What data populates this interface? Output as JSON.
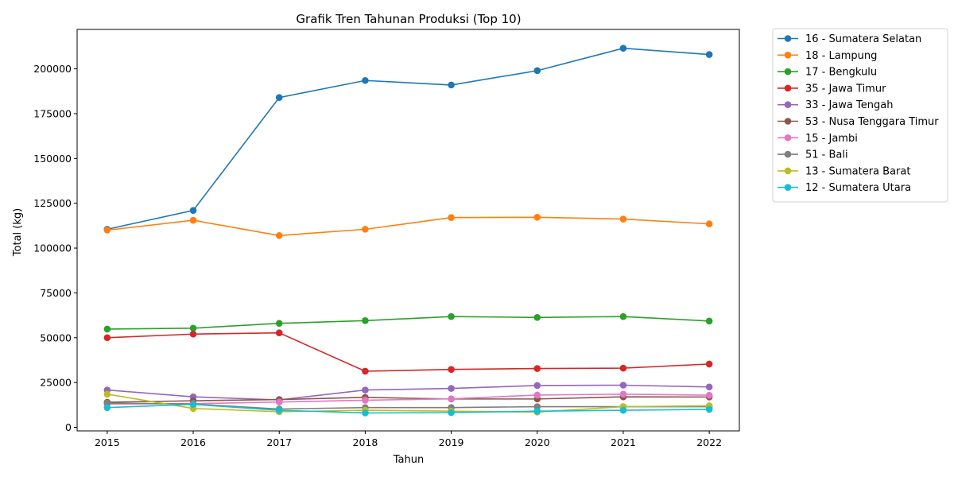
{
  "chart_data": {
    "type": "line",
    "title": "Grafik Tren Tahunan Produksi (Top 10)",
    "xlabel": "Tahun",
    "ylabel": "Total (kg)",
    "x": [
      2015,
      2016,
      2017,
      2018,
      2019,
      2020,
      2021,
      2022
    ],
    "x_tick_labels": [
      "2015",
      "2016",
      "2017",
      "2018",
      "2019",
      "2020",
      "2021",
      "2022"
    ],
    "y_ticks": [
      0,
      25000,
      50000,
      75000,
      100000,
      125000,
      150000,
      175000,
      200000
    ],
    "y_tick_labels": [
      "0",
      "25000",
      "50000",
      "75000",
      "100000",
      "125000",
      "150000",
      "175000",
      "200000"
    ],
    "ylim": [
      -2000,
      222000
    ],
    "xlim": [
      2014.65,
      2022.35
    ],
    "grid": false,
    "legend_position": "outside-right",
    "series": [
      {
        "name": "16 - Sumatera Selatan",
        "color": "#1f77b4",
        "values": [
          110500,
          121000,
          184000,
          193500,
          191000,
          199000,
          211500,
          208000
        ]
      },
      {
        "name": "18 - Lampung",
        "color": "#ff7f0e",
        "values": [
          110000,
          115500,
          107000,
          110500,
          117000,
          117200,
          116200,
          113500
        ]
      },
      {
        "name": "17 - Bengkulu",
        "color": "#2ca02c",
        "values": [
          54800,
          55300,
          58000,
          59500,
          61800,
          61300,
          61800,
          59300
        ]
      },
      {
        "name": "35 - Jawa Timur",
        "color": "#d62728",
        "values": [
          50000,
          52000,
          52700,
          31300,
          32300,
          32800,
          33000,
          35300
        ]
      },
      {
        "name": "33 - Jawa Tengah",
        "color": "#9467bd",
        "values": [
          20800,
          17000,
          15300,
          20800,
          21700,
          23300,
          23500,
          22500
        ]
      },
      {
        "name": "53 - Nusa Tenggara Timur",
        "color": "#8c564b",
        "values": [
          14000,
          14800,
          15500,
          16700,
          15800,
          15800,
          17000,
          16900
        ]
      },
      {
        "name": "15 - Jambi",
        "color": "#e377c2",
        "values": [
          13000,
          13200,
          14100,
          15100,
          15900,
          18000,
          18500,
          17900
        ]
      },
      {
        "name": "51 - Bali",
        "color": "#7f7f7f",
        "values": [
          13500,
          13000,
          10200,
          11000,
          11000,
          11500,
          11500,
          11500
        ]
      },
      {
        "name": "13 - Sumatera Barat",
        "color": "#bcbd22",
        "values": [
          18500,
          10500,
          8700,
          9500,
          9000,
          8500,
          11500,
          12000
        ]
      },
      {
        "name": "12 - Sumatera Utara",
        "color": "#17becf",
        "values": [
          11000,
          12800,
          9500,
          8000,
          8200,
          9000,
          9500,
          10000
        ]
      }
    ]
  }
}
